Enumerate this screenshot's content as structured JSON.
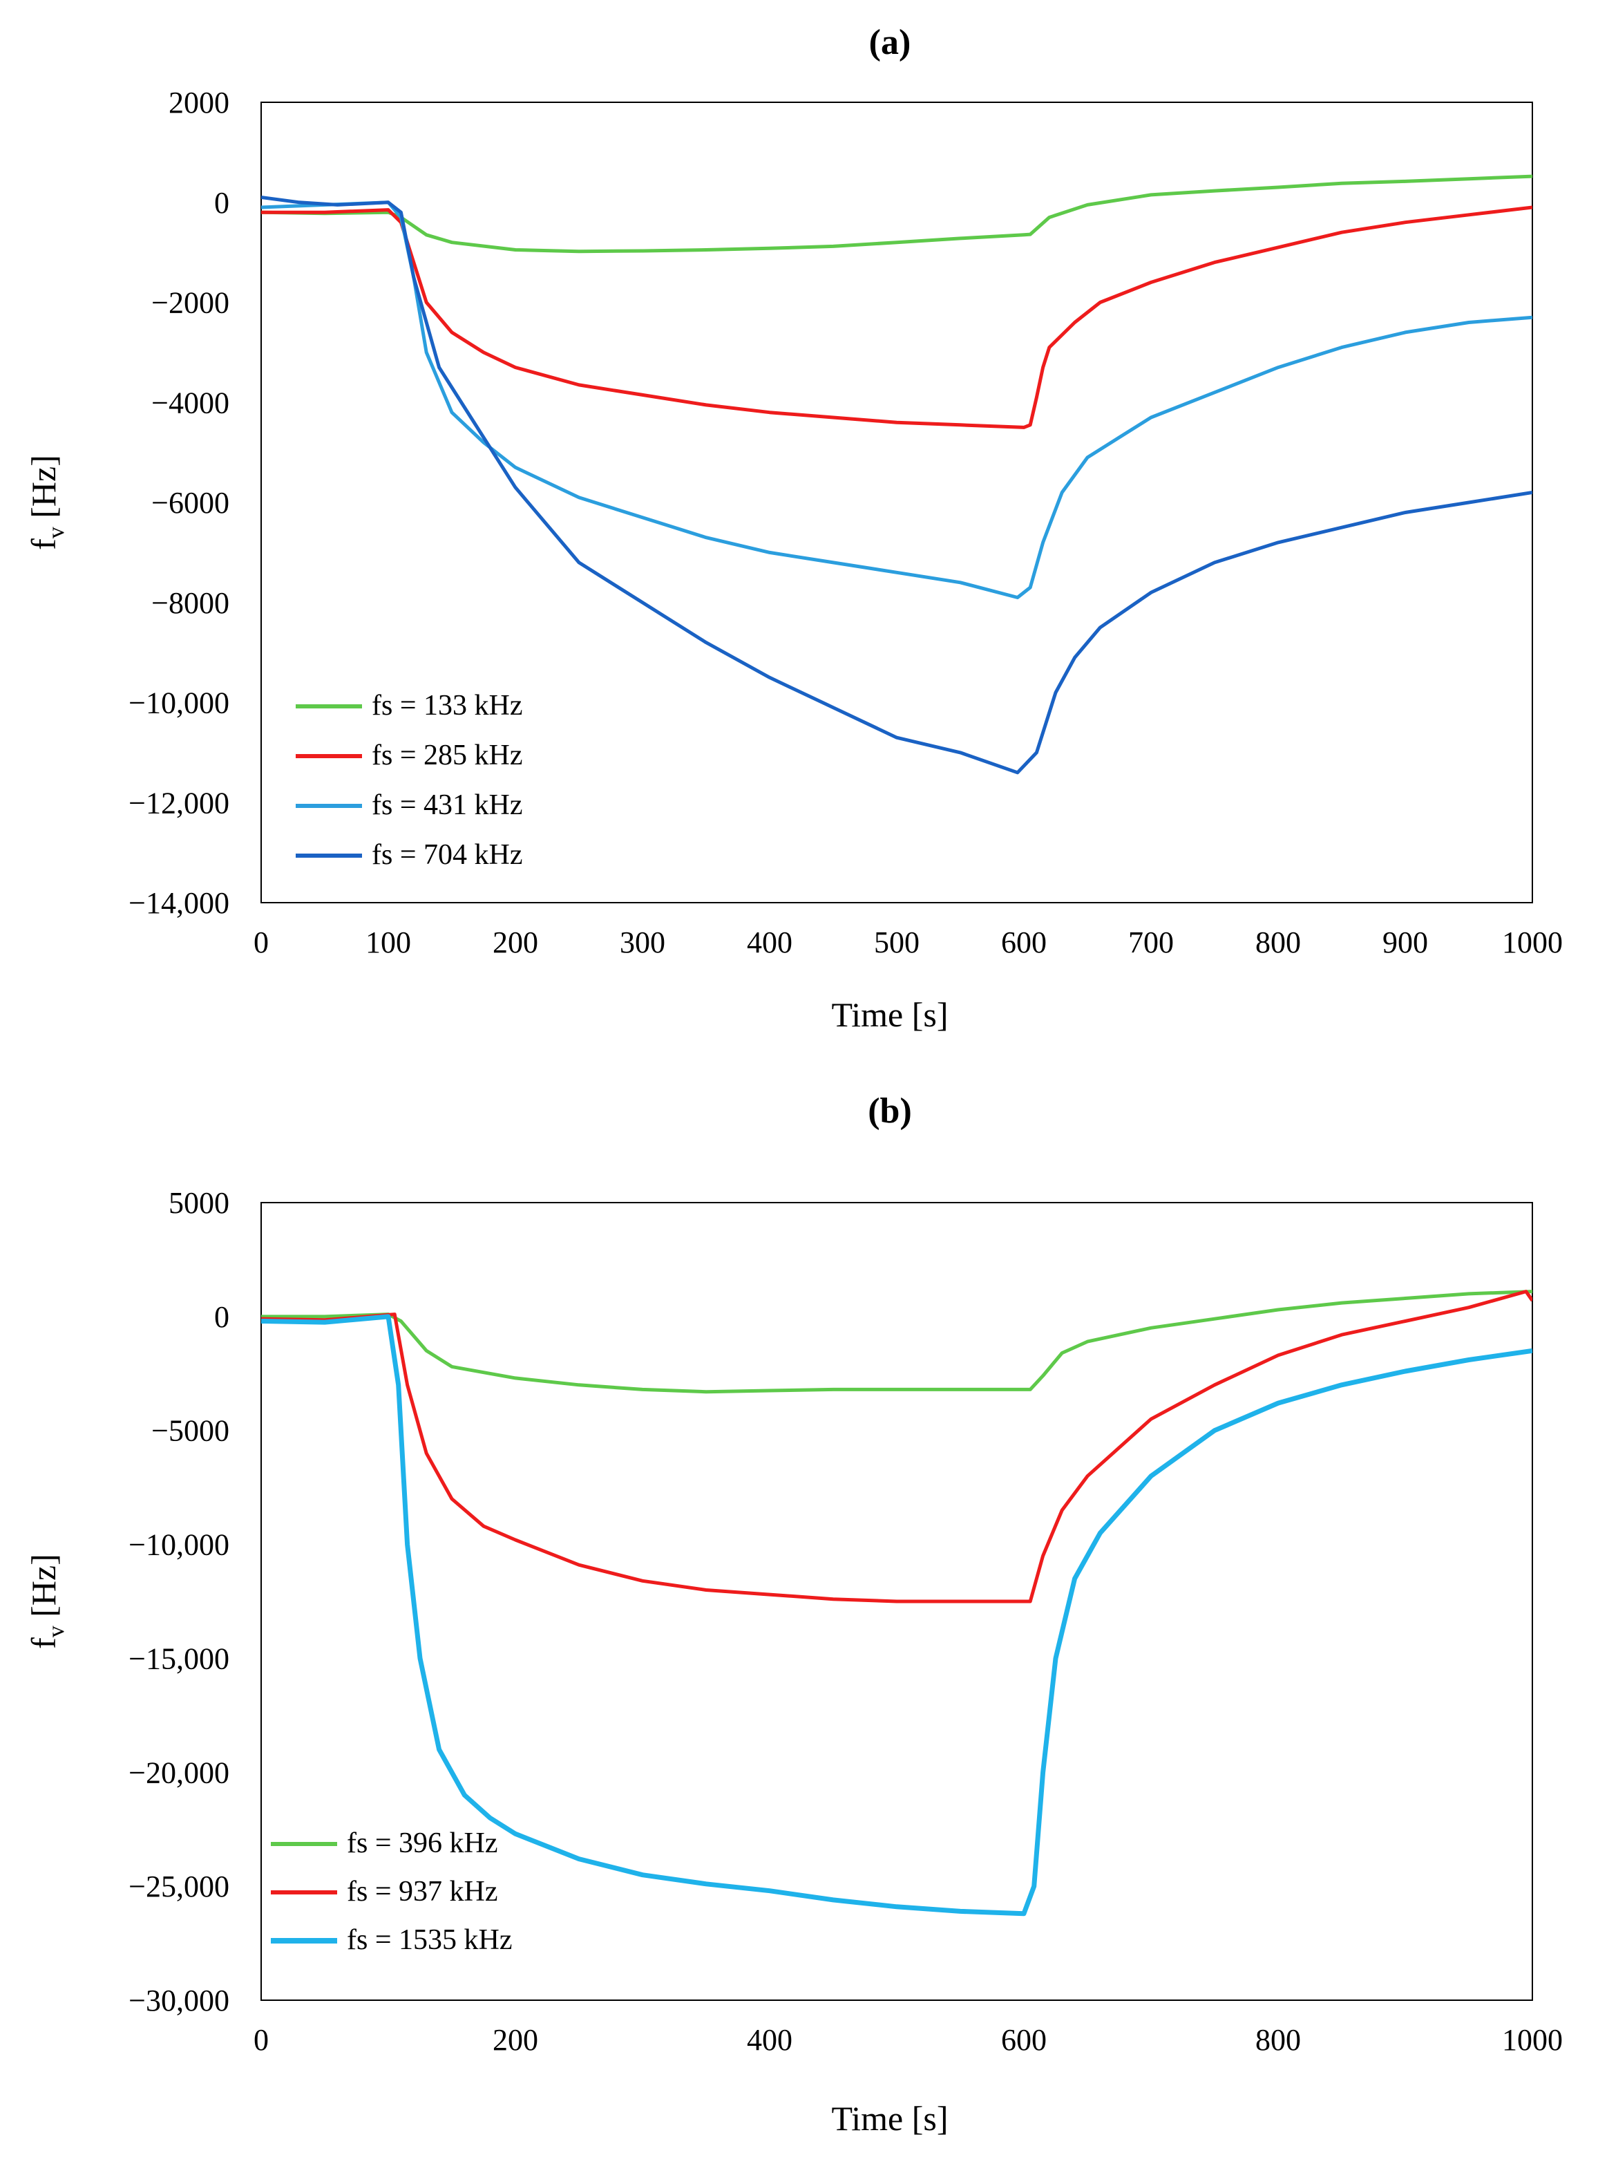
{
  "chart_data": [
    {
      "type": "line",
      "title": "(a)",
      "xlabel": "Time [s]",
      "ylabel_main": "f",
      "ylabel_sub": "v",
      "ylabel_unit": "[Hz]",
      "xlim": [
        0,
        1000
      ],
      "ylim": [
        -14000,
        2000
      ],
      "x_ticks": [
        0,
        100,
        200,
        300,
        400,
        500,
        600,
        700,
        800,
        900,
        1000
      ],
      "x_tick_labels": [
        "0",
        "100",
        "200",
        "300",
        "400",
        "500",
        "600",
        "700",
        "800",
        "900",
        "1000"
      ],
      "y_ticks": [
        2000,
        0,
        -2000,
        -4000,
        -6000,
        -8000,
        -10000,
        -12000,
        -14000
      ],
      "y_tick_labels": [
        "2000",
        "0",
        "−2000",
        "−4000",
        "−6000",
        "−8000",
        "−10,000",
        "−12,000",
        "−14,000"
      ],
      "legend_position": "bottom-left",
      "series": [
        {
          "name": "fs = 133 kHz",
          "color": "#5ec94a",
          "x": [
            0,
            50,
            100,
            110,
            130,
            150,
            200,
            250,
            300,
            350,
            400,
            450,
            500,
            550,
            600,
            605,
            620,
            650,
            700,
            750,
            800,
            850,
            900,
            950,
            1000
          ],
          "y": [
            -200,
            -220,
            -200,
            -300,
            -650,
            -800,
            -950,
            -980,
            -970,
            -950,
            -920,
            -880,
            -800,
            -720,
            -650,
            -640,
            -300,
            -50,
            150,
            230,
            300,
            380,
            420,
            470,
            520
          ]
        },
        {
          "name": "fs = 285 kHz",
          "color": "#ee1c1c",
          "x": [
            0,
            50,
            100,
            110,
            120,
            130,
            150,
            175,
            200,
            250,
            300,
            350,
            400,
            450,
            500,
            550,
            600,
            605,
            610,
            615,
            620,
            640,
            660,
            700,
            750,
            800,
            850,
            900,
            950,
            1000
          ],
          "y": [
            -200,
            -200,
            -150,
            -400,
            -1200,
            -2000,
            -2600,
            -3000,
            -3300,
            -3650,
            -3850,
            -4050,
            -4200,
            -4300,
            -4400,
            -4450,
            -4500,
            -4450,
            -3900,
            -3300,
            -2900,
            -2400,
            -2000,
            -1600,
            -1200,
            -900,
            -600,
            -400,
            -250,
            -100
          ]
        },
        {
          "name": "fs = 431 kHz",
          "color": "#2b9ede",
          "x": [
            0,
            50,
            100,
            110,
            120,
            130,
            150,
            175,
            200,
            250,
            300,
            350,
            400,
            450,
            500,
            550,
            595,
            605,
            615,
            630,
            650,
            675,
            700,
            750,
            800,
            850,
            900,
            950,
            1000
          ],
          "y": [
            -100,
            -50,
            0,
            -300,
            -1500,
            -3000,
            -4200,
            -4800,
            -5300,
            -5900,
            -6300,
            -6700,
            -7000,
            -7200,
            -7400,
            -7600,
            -7900,
            -7700,
            -6800,
            -5800,
            -5100,
            -4700,
            -4300,
            -3800,
            -3300,
            -2900,
            -2600,
            -2400,
            -2300
          ]
        },
        {
          "name": "fs = 704 kHz",
          "color": "#1a62c4",
          "x": [
            0,
            30,
            60,
            100,
            110,
            120,
            140,
            160,
            180,
            200,
            250,
            300,
            350,
            400,
            450,
            500,
            550,
            595,
            610,
            625,
            640,
            660,
            700,
            750,
            800,
            850,
            900,
            950,
            1000
          ],
          "y": [
            100,
            0,
            -50,
            0,
            -200,
            -1500,
            -3300,
            -4100,
            -4900,
            -5700,
            -7200,
            -8000,
            -8800,
            -9500,
            -10100,
            -10700,
            -11000,
            -11400,
            -11000,
            -9800,
            -9100,
            -8500,
            -7800,
            -7200,
            -6800,
            -6500,
            -6200,
            -6000,
            -5800
          ]
        }
      ]
    },
    {
      "type": "line",
      "title": "(b)",
      "xlabel": "Time [s]",
      "ylabel_main": "f",
      "ylabel_sub": "v",
      "ylabel_unit": "[Hz]",
      "xlim": [
        0,
        1000
      ],
      "ylim": [
        -30000,
        5000
      ],
      "x_ticks": [
        0,
        200,
        400,
        600,
        800,
        1000
      ],
      "x_tick_labels": [
        "0",
        "200",
        "400",
        "600",
        "800",
        "1000"
      ],
      "y_ticks": [
        5000,
        0,
        -5000,
        -10000,
        -15000,
        -20000,
        -25000,
        -30000
      ],
      "y_tick_labels": [
        "5000",
        "0",
        "−5000",
        "−10,000",
        "−15,000",
        "−20,000",
        "−25,000",
        "−30,000"
      ],
      "legend_position": "bottom-left",
      "series": [
        {
          "name": "fs = 396 kHz",
          "color": "#5ec94a",
          "x": [
            0,
            50,
            100,
            110,
            130,
            150,
            200,
            250,
            300,
            350,
            400,
            450,
            500,
            550,
            605,
            615,
            630,
            650,
            700,
            750,
            800,
            850,
            900,
            950,
            1000
          ],
          "y": [
            0,
            0,
            100,
            -200,
            -1500,
            -2200,
            -2700,
            -3000,
            -3200,
            -3300,
            -3250,
            -3200,
            -3200,
            -3200,
            -3200,
            -2600,
            -1600,
            -1100,
            -500,
            -100,
            300,
            600,
            800,
            1000,
            1100
          ]
        },
        {
          "name": "fs = 937 kHz",
          "color": "#ee1c1c",
          "x": [
            0,
            50,
            105,
            115,
            130,
            150,
            175,
            200,
            250,
            300,
            350,
            400,
            450,
            500,
            550,
            605,
            615,
            630,
            650,
            700,
            750,
            800,
            850,
            900,
            950,
            995,
            1000
          ],
          "y": [
            -100,
            -150,
            100,
            -3000,
            -6000,
            -8000,
            -9200,
            -9800,
            -10900,
            -11600,
            -12000,
            -12200,
            -12400,
            -12500,
            -12500,
            -12500,
            -10500,
            -8500,
            -7000,
            -4500,
            -3000,
            -1700,
            -800,
            -200,
            400,
            1100,
            700
          ]
        },
        {
          "name": "fs = 1535 kHz",
          "color": "#1fb2ea",
          "x": [
            0,
            50,
            100,
            108,
            115,
            125,
            140,
            160,
            180,
            200,
            250,
            300,
            350,
            400,
            450,
            500,
            550,
            600,
            608,
            615,
            625,
            640,
            660,
            700,
            750,
            800,
            850,
            900,
            950,
            1000
          ],
          "y": [
            -200,
            -250,
            0,
            -3000,
            -10000,
            -15000,
            -19000,
            -21000,
            -22000,
            -22700,
            -23800,
            -24500,
            -24900,
            -25200,
            -25600,
            -25900,
            -26100,
            -26200,
            -25000,
            -20000,
            -15000,
            -11500,
            -9500,
            -7000,
            -5000,
            -3800,
            -3000,
            -2400,
            -1900,
            -1500
          ]
        }
      ]
    }
  ]
}
